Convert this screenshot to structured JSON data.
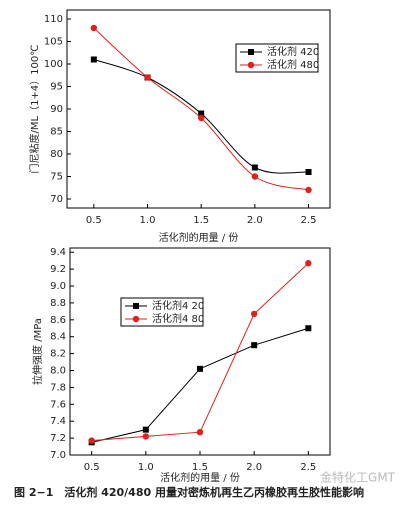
{
  "chart_data": [
    {
      "type": "line",
      "smooth": true,
      "x_label": "活化剂的用量 / 份",
      "y_label": "门尼粘度/ML（1+4）100℃",
      "x": [
        0.5,
        1.0,
        1.5,
        2.0,
        2.5
      ],
      "series": [
        {
          "name": "活化剂 420",
          "color": "#000000",
          "marker": "square",
          "values": [
            101,
            97,
            89,
            77,
            76
          ]
        },
        {
          "name": "活化剂 480",
          "color": "#e0201b",
          "marker": "circle",
          "values": [
            108,
            97,
            88,
            75,
            72
          ]
        }
      ],
      "xlim": [
        0.25,
        2.7
      ],
      "xticks": [
        0.5,
        {
          "value": 1,
          "label": "1.0"
        },
        1.5,
        {
          "value": 2,
          "label": "2.0"
        },
        2.5
      ],
      "ylim": [
        68,
        112
      ],
      "yticks": [
        70,
        75,
        80,
        85,
        90,
        95,
        100,
        105,
        110
      ],
      "legend": "upper-right"
    },
    {
      "type": "line",
      "smooth": false,
      "x_label": "活化剂的用量 / 份",
      "y_label": "拉伸强度 /MPa",
      "x": [
        0.5,
        1.0,
        1.5,
        2.0,
        2.5
      ],
      "series": [
        {
          "name": "活化剂4 20",
          "color": "#000000",
          "marker": "square",
          "values": [
            7.15,
            7.3,
            8.02,
            8.3,
            8.5
          ]
        },
        {
          "name": "活化剂4 80",
          "color": "#e0201b",
          "marker": "circle",
          "values": [
            7.17,
            7.22,
            7.27,
            8.67,
            9.27
          ]
        }
      ],
      "xlim": [
        0.3,
        2.7
      ],
      "xticks": [
        0.5,
        {
          "value": 1,
          "label": "1.0"
        },
        1.5,
        {
          "value": 2,
          "label": "2.0"
        },
        2.5
      ],
      "ylim": [
        7.0,
        9.45
      ],
      "yticks": [
        {
          "value": 7,
          "label": "7.0"
        },
        7.2,
        7.4,
        7.6,
        7.8,
        {
          "value": 8,
          "label": "8.0"
        },
        8.2,
        8.4,
        8.6,
        8.8,
        {
          "value": 9,
          "label": "9.0"
        },
        9.2,
        9.4
      ],
      "legend": "upper-left"
    }
  ],
  "caption": "图 2−1　活化剂 420/480 用量对密炼机再生乙丙橡胶再生胶性能影响",
  "watermark": "金特化工GMT"
}
